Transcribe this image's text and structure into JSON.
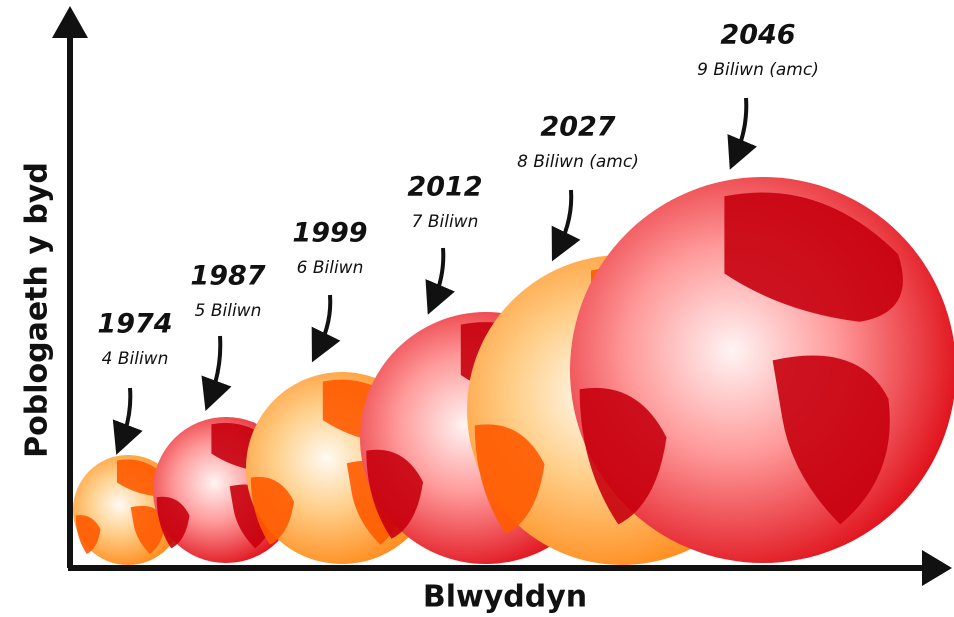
{
  "axes": {
    "y_label": "Poblogaeth y byd",
    "x_label": "Blwyddyn"
  },
  "items": [
    {
      "year": "1974",
      "population": "4 Biliwn"
    },
    {
      "year": "1987",
      "population": "5 Biliwn"
    },
    {
      "year": "1999",
      "population": "6 Biliwn"
    },
    {
      "year": "2012",
      "population": "7 Biliwn"
    },
    {
      "year": "2027",
      "population": "8 Biliwn (amc)"
    },
    {
      "year": "2046",
      "population": "9 Biliwn (amc)"
    }
  ]
}
